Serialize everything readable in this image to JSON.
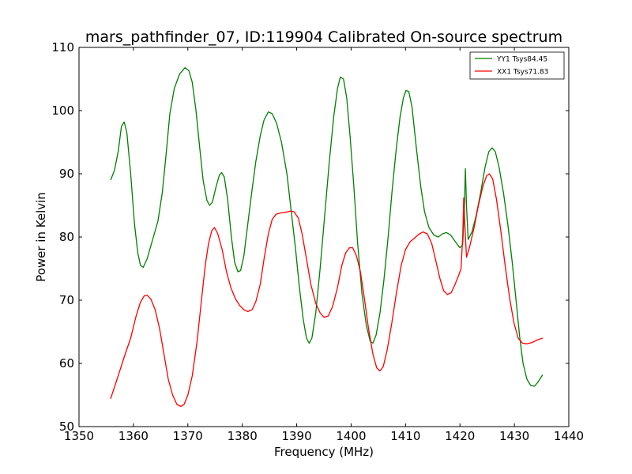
{
  "chart_data": {
    "type": "line",
    "title": "mars_pathfinder_07, ID:119904 Calibrated On-source spectrum",
    "xlabel": "Frequency (MHz)",
    "ylabel": "Power in Kelvin",
    "xlim": [
      1350,
      1440
    ],
    "ylim": [
      50,
      110
    ],
    "xticks": [
      1350,
      1360,
      1370,
      1380,
      1390,
      1400,
      1410,
      1420,
      1430,
      1440
    ],
    "yticks": [
      50,
      60,
      70,
      80,
      90,
      100,
      110
    ],
    "grid": false,
    "legend_position": "top-right",
    "series": [
      {
        "name": "YY1 Tsys84.45",
        "color": "#008000",
        "points": [
          [
            1355.8,
            89.0
          ],
          [
            1356.5,
            90.5
          ],
          [
            1357.2,
            93.5
          ],
          [
            1357.8,
            97.5
          ],
          [
            1358.3,
            98.2
          ],
          [
            1358.8,
            96.5
          ],
          [
            1359.5,
            90.0
          ],
          [
            1360.2,
            82.0
          ],
          [
            1360.8,
            77.5
          ],
          [
            1361.3,
            75.5
          ],
          [
            1361.8,
            75.2
          ],
          [
            1362.5,
            76.5
          ],
          [
            1363.5,
            79.5
          ],
          [
            1364.5,
            82.5
          ],
          [
            1365.3,
            87.0
          ],
          [
            1366.0,
            93.0
          ],
          [
            1366.7,
            99.5
          ],
          [
            1367.5,
            103.5
          ],
          [
            1368.5,
            105.8
          ],
          [
            1369.5,
            106.8
          ],
          [
            1370.2,
            106.3
          ],
          [
            1370.8,
            104.5
          ],
          [
            1371.5,
            100.0
          ],
          [
            1372.2,
            94.0
          ],
          [
            1372.8,
            89.0
          ],
          [
            1373.5,
            85.8
          ],
          [
            1374.0,
            85.0
          ],
          [
            1374.5,
            85.5
          ],
          [
            1375.2,
            88.0
          ],
          [
            1375.8,
            89.8
          ],
          [
            1376.2,
            90.2
          ],
          [
            1376.7,
            89.5
          ],
          [
            1377.3,
            86.0
          ],
          [
            1378.0,
            80.0
          ],
          [
            1378.6,
            76.0
          ],
          [
            1379.2,
            74.5
          ],
          [
            1379.7,
            74.7
          ],
          [
            1380.3,
            77.0
          ],
          [
            1381.0,
            82.0
          ],
          [
            1381.8,
            87.5
          ],
          [
            1382.5,
            92.0
          ],
          [
            1383.3,
            96.0
          ],
          [
            1384.0,
            98.5
          ],
          [
            1384.8,
            99.8
          ],
          [
            1385.5,
            99.5
          ],
          [
            1386.3,
            98.0
          ],
          [
            1387.2,
            95.0
          ],
          [
            1388.2,
            90.0
          ],
          [
            1389.0,
            84.0
          ],
          [
            1389.8,
            78.0
          ],
          [
            1390.5,
            72.0
          ],
          [
            1391.2,
            67.0
          ],
          [
            1391.8,
            64.0
          ],
          [
            1392.3,
            63.2
          ],
          [
            1392.8,
            64.0
          ],
          [
            1393.5,
            68.0
          ],
          [
            1394.3,
            75.0
          ],
          [
            1395.2,
            84.0
          ],
          [
            1396.0,
            92.0
          ],
          [
            1396.8,
            99.0
          ],
          [
            1397.5,
            103.5
          ],
          [
            1398.0,
            105.3
          ],
          [
            1398.6,
            105.0
          ],
          [
            1399.2,
            102.0
          ],
          [
            1399.8,
            96.0
          ],
          [
            1400.5,
            88.0
          ],
          [
            1401.2,
            79.0
          ],
          [
            1402.0,
            71.0
          ],
          [
            1402.8,
            66.0
          ],
          [
            1403.5,
            63.5
          ],
          [
            1404.0,
            63.2
          ],
          [
            1404.6,
            64.5
          ],
          [
            1405.3,
            68.0
          ],
          [
            1406.0,
            73.0
          ],
          [
            1406.8,
            80.0
          ],
          [
            1407.5,
            87.0
          ],
          [
            1408.3,
            94.0
          ],
          [
            1409.0,
            99.0
          ],
          [
            1409.6,
            102.0
          ],
          [
            1410.1,
            103.2
          ],
          [
            1410.6,
            103.0
          ],
          [
            1411.2,
            100.5
          ],
          [
            1412.0,
            94.0
          ],
          [
            1412.8,
            88.0
          ],
          [
            1413.5,
            84.0
          ],
          [
            1414.3,
            81.5
          ],
          [
            1415.2,
            80.3
          ],
          [
            1416.0,
            80.0
          ],
          [
            1416.8,
            80.5
          ],
          [
            1417.5,
            80.7
          ],
          [
            1418.3,
            80.3
          ],
          [
            1419.2,
            79.2
          ],
          [
            1420.0,
            78.3
          ],
          [
            1420.5,
            78.8
          ],
          [
            1420.8,
            84.0
          ],
          [
            1421.0,
            90.8
          ],
          [
            1421.2,
            85.0
          ],
          [
            1421.5,
            79.6
          ],
          [
            1422.2,
            80.8
          ],
          [
            1423.0,
            83.5
          ],
          [
            1423.8,
            87.0
          ],
          [
            1424.6,
            91.0
          ],
          [
            1425.3,
            93.5
          ],
          [
            1425.9,
            94.1
          ],
          [
            1426.5,
            93.5
          ],
          [
            1427.2,
            91.0
          ],
          [
            1428.0,
            87.0
          ],
          [
            1428.8,
            82.0
          ],
          [
            1429.6,
            76.0
          ],
          [
            1430.3,
            70.0
          ],
          [
            1431.0,
            64.0
          ],
          [
            1431.6,
            60.0
          ],
          [
            1432.3,
            57.5
          ],
          [
            1433.0,
            56.5
          ],
          [
            1433.7,
            56.4
          ],
          [
            1434.3,
            57.0
          ],
          [
            1435.2,
            58.2
          ]
        ]
      },
      {
        "name": "XX1 Tsys71.83",
        "color": "#ff0000",
        "points": [
          [
            1355.8,
            54.4
          ],
          [
            1357.0,
            57.5
          ],
          [
            1358.3,
            61.0
          ],
          [
            1359.5,
            64.0
          ],
          [
            1360.5,
            67.5
          ],
          [
            1361.3,
            69.7
          ],
          [
            1362.0,
            70.7
          ],
          [
            1362.5,
            70.8
          ],
          [
            1363.2,
            70.2
          ],
          [
            1364.0,
            68.5
          ],
          [
            1364.8,
            65.5
          ],
          [
            1365.6,
            61.5
          ],
          [
            1366.4,
            57.5
          ],
          [
            1367.2,
            55.0
          ],
          [
            1368.0,
            53.5
          ],
          [
            1368.7,
            53.2
          ],
          [
            1369.3,
            53.5
          ],
          [
            1370.0,
            55.0
          ],
          [
            1370.8,
            58.0
          ],
          [
            1371.7,
            63.5
          ],
          [
            1372.5,
            70.0
          ],
          [
            1373.2,
            75.5
          ],
          [
            1373.8,
            79.0
          ],
          [
            1374.4,
            81.0
          ],
          [
            1374.9,
            81.5
          ],
          [
            1375.5,
            80.5
          ],
          [
            1376.3,
            78.0
          ],
          [
            1377.1,
            74.5
          ],
          [
            1377.9,
            72.0
          ],
          [
            1378.7,
            70.3
          ],
          [
            1379.5,
            69.2
          ],
          [
            1380.3,
            68.5
          ],
          [
            1381.0,
            68.2
          ],
          [
            1381.8,
            68.5
          ],
          [
            1382.5,
            69.8
          ],
          [
            1383.3,
            72.5
          ],
          [
            1384.0,
            76.5
          ],
          [
            1384.8,
            80.5
          ],
          [
            1385.5,
            82.8
          ],
          [
            1386.2,
            83.6
          ],
          [
            1387.0,
            83.8
          ],
          [
            1388.0,
            83.9
          ],
          [
            1388.8,
            84.1
          ],
          [
            1389.5,
            84.0
          ],
          [
            1390.3,
            83.0
          ],
          [
            1391.0,
            80.5
          ],
          [
            1391.8,
            76.5
          ],
          [
            1392.6,
            72.5
          ],
          [
            1393.5,
            69.5
          ],
          [
            1394.3,
            68.0
          ],
          [
            1395.0,
            67.3
          ],
          [
            1395.8,
            67.5
          ],
          [
            1396.6,
            69.0
          ],
          [
            1397.5,
            72.0
          ],
          [
            1398.3,
            75.5
          ],
          [
            1399.0,
            77.5
          ],
          [
            1399.7,
            78.3
          ],
          [
            1400.3,
            78.3
          ],
          [
            1401.0,
            77.0
          ],
          [
            1401.7,
            74.5
          ],
          [
            1402.4,
            70.5
          ],
          [
            1403.2,
            65.5
          ],
          [
            1404.0,
            61.5
          ],
          [
            1404.7,
            59.3
          ],
          [
            1405.3,
            58.8
          ],
          [
            1405.9,
            59.5
          ],
          [
            1406.6,
            62.0
          ],
          [
            1407.5,
            66.5
          ],
          [
            1408.3,
            71.0
          ],
          [
            1409.2,
            75.5
          ],
          [
            1410.0,
            78.0
          ],
          [
            1410.8,
            79.2
          ],
          [
            1411.6,
            79.8
          ],
          [
            1412.4,
            80.4
          ],
          [
            1413.2,
            80.8
          ],
          [
            1414.0,
            80.5
          ],
          [
            1414.8,
            79.0
          ],
          [
            1415.5,
            76.5
          ],
          [
            1416.3,
            73.5
          ],
          [
            1417.0,
            71.5
          ],
          [
            1417.7,
            70.9
          ],
          [
            1418.4,
            71.2
          ],
          [
            1419.1,
            72.5
          ],
          [
            1419.8,
            74.0
          ],
          [
            1420.2,
            75.0
          ],
          [
            1420.5,
            80.0
          ],
          [
            1420.7,
            86.2
          ],
          [
            1420.9,
            82.0
          ],
          [
            1421.2,
            76.8
          ],
          [
            1421.8,
            78.5
          ],
          [
            1422.6,
            81.5
          ],
          [
            1423.4,
            85.0
          ],
          [
            1424.2,
            88.0
          ],
          [
            1424.9,
            89.7
          ],
          [
            1425.4,
            90.0
          ],
          [
            1426.0,
            89.2
          ],
          [
            1426.7,
            86.0
          ],
          [
            1427.5,
            81.0
          ],
          [
            1428.3,
            75.5
          ],
          [
            1429.1,
            70.5
          ],
          [
            1429.9,
            66.5
          ],
          [
            1430.7,
            64.0
          ],
          [
            1431.5,
            63.2
          ],
          [
            1432.3,
            63.1
          ],
          [
            1433.2,
            63.3
          ],
          [
            1434.2,
            63.7
          ],
          [
            1435.2,
            64.0
          ]
        ]
      }
    ]
  }
}
